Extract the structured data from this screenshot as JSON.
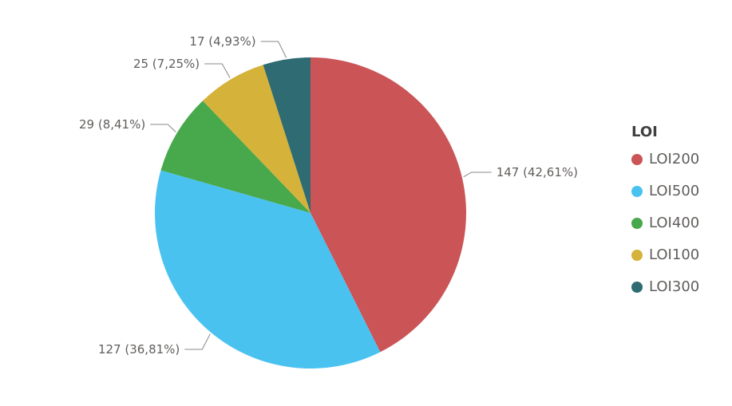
{
  "chart_data": {
    "type": "pie",
    "legend": {
      "title": "LOI",
      "position": "right"
    },
    "slices": [
      {
        "name": "LOI200",
        "value": 147,
        "percent": "42,61%",
        "label": "147 (42,61%)",
        "color": "#CB5457"
      },
      {
        "name": "LOI500",
        "value": 127,
        "percent": "36,81%",
        "label": "127 (36,81%)",
        "color": "#4AC2F0"
      },
      {
        "name": "LOI400",
        "value": 29,
        "percent": "8,41%",
        "label": "29 (8,41%)",
        "color": "#48A84C"
      },
      {
        "name": "LOI100",
        "value": 25,
        "percent": "7,25%",
        "label": "25 (7,25%)",
        "color": "#D5B23A"
      },
      {
        "name": "LOI300",
        "value": 17,
        "percent": "4,93%",
        "label": "17 (4,93%)",
        "color": "#2F6B73"
      }
    ],
    "legend_order": [
      "LOI200",
      "LOI500",
      "LOI400",
      "LOI100",
      "LOI300"
    ]
  }
}
